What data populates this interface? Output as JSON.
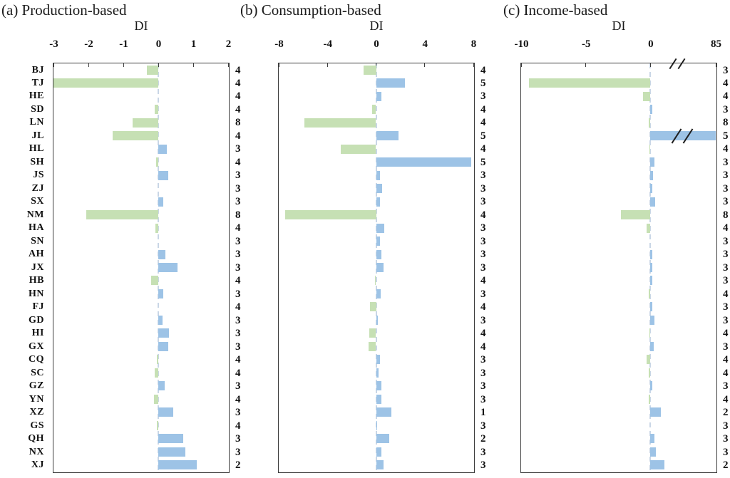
{
  "chart_data": {
    "type": "bar",
    "orientation": "horizontal",
    "categories": [
      "BJ",
      "TJ",
      "HE",
      "SD",
      "LN",
      "JL",
      "HL",
      "SH",
      "JS",
      "ZJ",
      "SX",
      "NM",
      "HA",
      "SN",
      "AH",
      "JX",
      "HB",
      "HN",
      "FJ",
      "GD",
      "HI",
      "GX",
      "CQ",
      "SC",
      "GZ",
      "YN",
      "XZ",
      "GS",
      "QH",
      "NX",
      "XJ"
    ],
    "colors": {
      "positive_bar": "#9dc3e6",
      "negative_bar": "#c6e0b4",
      "zero_line": "#c9d6e6",
      "box_border": "#3d3d3d",
      "text": "#111111"
    },
    "panels": [
      {
        "id": "a",
        "title": "(a) Production-based",
        "axis_label": "DI",
        "xlim": [
          -3,
          2
        ],
        "ticks": [
          {
            "v": -3,
            "label": "-3"
          },
          {
            "v": -2,
            "label": "-2"
          },
          {
            "v": -1,
            "label": "-1"
          },
          {
            "v": 0,
            "label": "0"
          },
          {
            "v": 1,
            "label": "1"
          },
          {
            "v": 2,
            "label": "2"
          }
        ],
        "show_row_labels": true,
        "axis_break": false,
        "values": [
          -0.33,
          -3.0,
          -0.02,
          -0.1,
          -0.73,
          -1.3,
          0.24,
          -0.06,
          0.28,
          0.02,
          0.15,
          -2.07,
          -0.08,
          0.02,
          0.2,
          0.55,
          -0.2,
          0.15,
          0.02,
          0.12,
          0.3,
          0.28,
          -0.05,
          -0.1,
          0.18,
          -0.12,
          0.42,
          -0.04,
          0.72,
          0.78,
          1.1
        ],
        "cluster_counts": [
          4,
          4,
          4,
          4,
          8,
          4,
          3,
          4,
          3,
          3,
          3,
          8,
          4,
          3,
          3,
          3,
          4,
          3,
          4,
          3,
          3,
          3,
          4,
          4,
          3,
          4,
          3,
          4,
          3,
          3,
          2
        ]
      },
      {
        "id": "b",
        "title": "(b) Consumption-based",
        "axis_label": "DI",
        "xlim": [
          -8,
          8
        ],
        "ticks": [
          {
            "v": -8,
            "label": "-8"
          },
          {
            "v": -4,
            "label": "-4"
          },
          {
            "v": 0,
            "label": "0"
          },
          {
            "v": 4,
            "label": "4"
          },
          {
            "v": 8,
            "label": "8"
          }
        ],
        "show_row_labels": false,
        "axis_break": false,
        "values": [
          -1.0,
          2.4,
          0.45,
          -0.3,
          -5.9,
          1.85,
          -2.9,
          7.8,
          0.3,
          0.5,
          0.35,
          -7.5,
          0.65,
          0.3,
          0.45,
          0.6,
          -0.08,
          0.4,
          -0.5,
          0.15,
          -0.55,
          -0.6,
          0.35,
          0.2,
          0.45,
          0.45,
          1.25,
          0.06,
          1.1,
          0.45,
          0.6
        ],
        "cluster_counts": [
          4,
          5,
          3,
          4,
          4,
          5,
          4,
          5,
          3,
          3,
          3,
          4,
          3,
          3,
          3,
          3,
          4,
          3,
          4,
          3,
          4,
          4,
          3,
          3,
          3,
          3,
          1,
          3,
          2,
          3,
          3
        ]
      },
      {
        "id": "c",
        "title": "(c) Income-based",
        "axis_label": "DI",
        "xlim": [
          -10,
          5.05
        ],
        "ticks": [
          {
            "v": -10,
            "label": "-10"
          },
          {
            "v": -5,
            "label": "-5"
          },
          {
            "v": 0,
            "label": "0"
          },
          {
            "v": 85,
            "label": "85"
          }
        ],
        "show_row_labels": false,
        "axis_break": true,
        "break_bar_category": "JL",
        "values": [
          0.05,
          -9.4,
          -0.55,
          0.12,
          -0.12,
          85,
          -0.1,
          0.3,
          0.2,
          0.12,
          0.35,
          -2.3,
          -0.3,
          -0.03,
          0.12,
          0.15,
          0.15,
          -0.12,
          0.12,
          0.3,
          -0.06,
          0.25,
          -0.3,
          -0.12,
          0.15,
          -0.15,
          0.8,
          0.03,
          0.3,
          0.4,
          1.1
        ],
        "cluster_counts": [
          3,
          4,
          4,
          3,
          8,
          5,
          4,
          3,
          3,
          3,
          3,
          8,
          4,
          3,
          3,
          3,
          3,
          4,
          3,
          3,
          4,
          3,
          4,
          4,
          3,
          4,
          2,
          3,
          3,
          3,
          2
        ]
      }
    ]
  }
}
